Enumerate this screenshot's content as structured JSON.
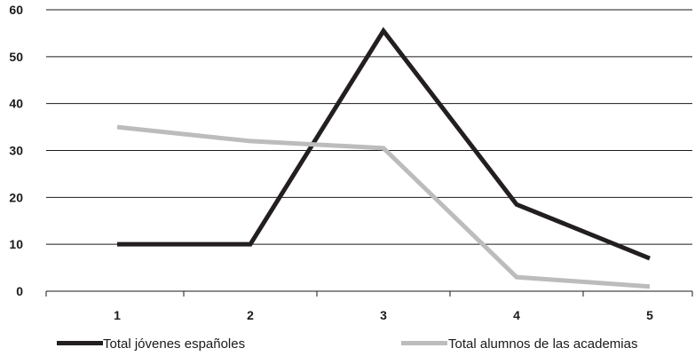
{
  "chart_data": {
    "type": "line",
    "title": "",
    "xlabel": "",
    "ylabel": "",
    "categories": [
      "1",
      "2",
      "3",
      "4",
      "5"
    ],
    "ylim": [
      0,
      60
    ],
    "yticks": [
      "0",
      "10",
      "20",
      "30",
      "40",
      "50",
      "60"
    ],
    "grid": "horizontal",
    "legend_position": "bottom",
    "series": [
      {
        "name": "Total jóvenes españoles",
        "values": [
          10,
          10,
          55.5,
          18.5,
          7
        ],
        "color": "#231f20"
      },
      {
        "name": "Total alumnos de las academias",
        "values": [
          35,
          32,
          30.5,
          3,
          1
        ],
        "color": "#bcbcbc"
      }
    ]
  }
}
